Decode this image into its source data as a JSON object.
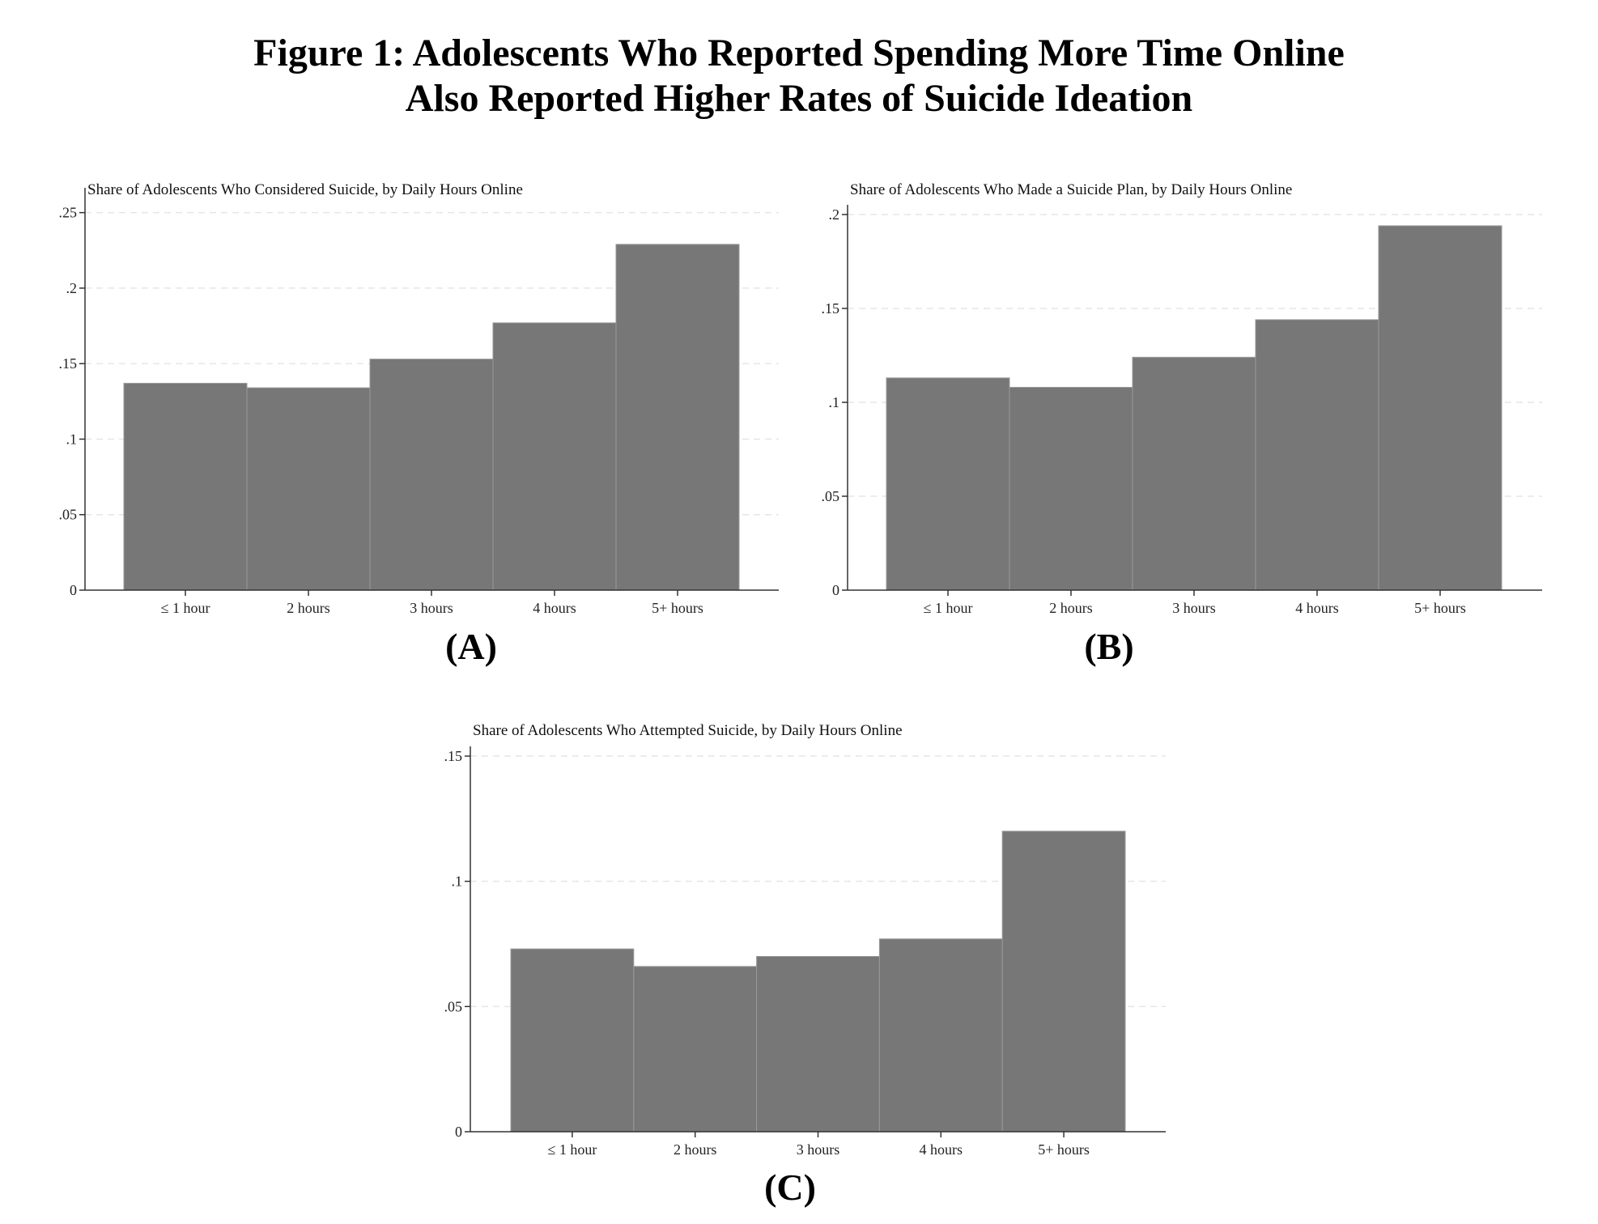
{
  "figure": {
    "title_line1": "Figure 1: Adolescents Who Reported Spending More Time Online",
    "title_line2": "Also Reported Higher Rates of Suicide Ideation"
  },
  "colors": {
    "bar": "#777777",
    "bar_edge": "#9a9a9a",
    "axis": "#333333",
    "grid": "#e6e6e6"
  },
  "chart_data": [
    {
      "type": "bar",
      "panel": "(A)",
      "title": "Share of Adolescents Who Considered Suicide, by Daily Hours Online",
      "categories": [
        "≤ 1 hour",
        "2 hours",
        "3 hours",
        "4 hours",
        "5+ hours"
      ],
      "values": [
        0.137,
        0.134,
        0.153,
        0.177,
        0.229
      ],
      "yticks": [
        0,
        0.05,
        0.1,
        0.15,
        0.2,
        0.25
      ],
      "ytick_labels": [
        "0",
        ".05",
        ".1",
        ".15",
        ".2",
        ".25"
      ],
      "ylim": [
        0,
        0.26
      ],
      "grid": true
    },
    {
      "type": "bar",
      "panel": "(B)",
      "title": "Share of Adolescents Who Made a Suicide Plan, by Daily Hours Online",
      "categories": [
        "≤ 1 hour",
        "2 hours",
        "3 hours",
        "4 hours",
        "5+ hours"
      ],
      "values": [
        0.113,
        0.108,
        0.124,
        0.144,
        0.194
      ],
      "yticks": [
        0,
        0.05,
        0.1,
        0.15,
        0.2
      ],
      "ytick_labels": [
        "0",
        ".05",
        ".1",
        ".15",
        ".2"
      ],
      "ylim": [
        0,
        0.2
      ],
      "grid": true
    },
    {
      "type": "bar",
      "panel": "(C)",
      "title": "Share of Adolescents Who Attempted Suicide, by Daily Hours Online",
      "categories": [
        "≤ 1 hour",
        "2 hours",
        "3 hours",
        "4 hours",
        "5+ hours"
      ],
      "values": [
        0.073,
        0.066,
        0.07,
        0.077,
        0.12
      ],
      "yticks": [
        0,
        0.05,
        0.1,
        0.15
      ],
      "ytick_labels": [
        "0",
        ".05",
        ".1",
        ".15"
      ],
      "ylim": [
        0,
        0.15
      ],
      "grid": true
    }
  ]
}
